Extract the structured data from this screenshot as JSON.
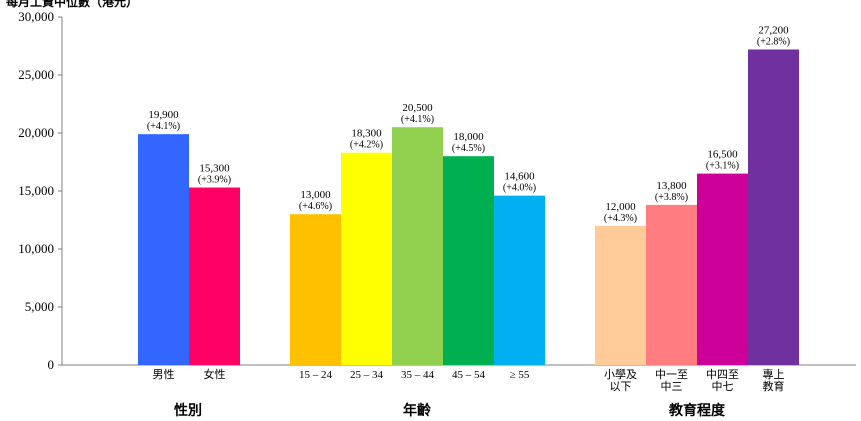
{
  "chart_data": {
    "type": "bar",
    "ylabel": "每月工資中位數（港元）",
    "ylim": [
      0,
      30000
    ],
    "yticks": [
      "0",
      "5,000",
      "10,000",
      "15,000",
      "20,000",
      "25,000",
      "30,000"
    ],
    "ytick_values": [
      0,
      5000,
      10000,
      15000,
      20000,
      25000,
      30000
    ],
    "grid": false,
    "groups": [
      {
        "title": "性別",
        "bars": [
          {
            "category": "男性",
            "value": 19900,
            "label": "19,900",
            "change": "(+4.1%)",
            "color": "#3366ff"
          },
          {
            "category": "女性",
            "value": 15300,
            "label": "15,300",
            "change": "(+3.9%)",
            "color": "#ff0066"
          }
        ]
      },
      {
        "title": "年齡",
        "bars": [
          {
            "category": "15 – 24",
            "value": 13000,
            "label": "13,000",
            "change": "(+4.6%)",
            "color": "#ffc000"
          },
          {
            "category": "25 – 34",
            "value": 18300,
            "label": "18,300",
            "change": "(+4.2%)",
            "color": "#ffff00"
          },
          {
            "category": "35 – 44",
            "value": 20500,
            "label": "20,500",
            "change": "(+4.1%)",
            "color": "#92d050"
          },
          {
            "category": "45 – 54",
            "value": 18000,
            "label": "18,000",
            "change": "(+4.5%)",
            "color": "#00b050"
          },
          {
            "category": "≥ 55",
            "value": 14600,
            "label": "14,600",
            "change": "(+4.0%)",
            "color": "#00b0f0"
          }
        ]
      },
      {
        "title": "教育程度",
        "bars": [
          {
            "category": "小學及\n以下",
            "value": 12000,
            "label": "12,000",
            "change": "(+4.3%)",
            "color": "#ffcc99"
          },
          {
            "category": "中一至\n中三",
            "value": 13800,
            "label": "13,800",
            "change": "(+3.8%)",
            "color": "#ff7c80"
          },
          {
            "category": "中四至\n中七",
            "value": 16500,
            "label": "16,500",
            "change": "(+3.1%)",
            "color": "#cc0099"
          },
          {
            "category": "專上\n教育",
            "value": 27200,
            "label": "27,200",
            "change": "(+2.8%)",
            "color": "#7030a0"
          }
        ]
      }
    ]
  }
}
